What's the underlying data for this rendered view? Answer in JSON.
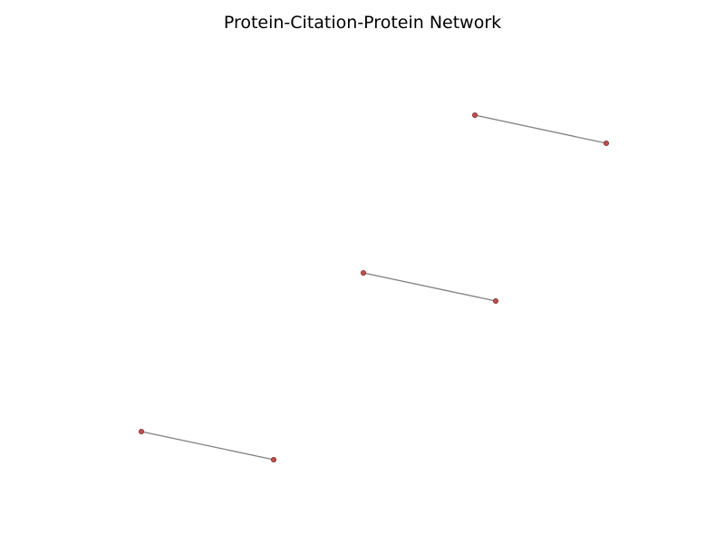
{
  "title": "Protein-Citation-Protein Network",
  "colors": {
    "edge": "#808080",
    "node_fill": "#c0504d",
    "node_stroke": "#7a2a28",
    "background": "#ffffff"
  },
  "graph": {
    "nodes": [
      {
        "id": "n1"
      },
      {
        "id": "n2"
      },
      {
        "id": "n3"
      },
      {
        "id": "n4"
      },
      {
        "id": "n5"
      },
      {
        "id": "n6"
      }
    ],
    "edges": [
      {
        "source": "n1",
        "target": "n2"
      },
      {
        "source": "n3",
        "target": "n4"
      },
      {
        "source": "n5",
        "target": "n6"
      }
    ]
  }
}
